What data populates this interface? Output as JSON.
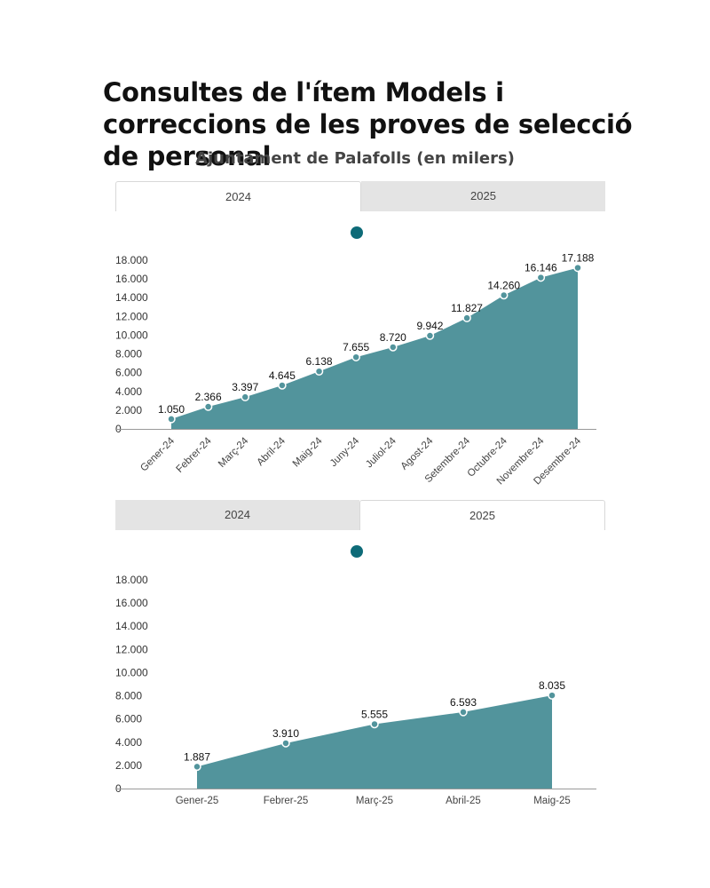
{
  "title": "Consultes de l'ítem Models i correccions de les proves de selecció de personal",
  "subtitle": "Ajuntament de Palafolls (en milers)",
  "colors": {
    "area": "#52949c",
    "point": "#52949c",
    "legend": "#0e6b78",
    "axis": "#999999"
  },
  "tabs_top": [
    {
      "label": "2024",
      "active": true
    },
    {
      "label": "2025",
      "active": false
    }
  ],
  "tabs_bottom": [
    {
      "label": "2024",
      "active": false
    },
    {
      "label": "2025",
      "active": true
    }
  ],
  "chart_data": [
    {
      "type": "area",
      "title": "",
      "xlabel": "",
      "ylabel": "",
      "ylim": [
        0,
        18000
      ],
      "yticks": [
        "0",
        "2.000",
        "4.000",
        "6.000",
        "8.000",
        "10.000",
        "12.000",
        "14.000",
        "16.000",
        "18.000"
      ],
      "categories": [
        "Gener-24",
        "Febrer-24",
        "Març-24",
        "Abril-24",
        "Maig-24",
        "Juny-24",
        "Juliol-24",
        "Agost-24",
        "Setembre-24",
        "Octubre-24",
        "Novembre-24",
        "Desembre-24"
      ],
      "values": [
        1050,
        2366,
        3397,
        4645,
        6138,
        7655,
        8720,
        9942,
        11827,
        14260,
        16146,
        17188
      ],
      "labels": [
        "1.050",
        "2.366",
        "3.397",
        "4.645",
        "6.138",
        "7.655",
        "8.720",
        "9.942",
        "11.827",
        "14.260",
        "16.146",
        "17.188"
      ],
      "grid": false
    },
    {
      "type": "area",
      "title": "",
      "xlabel": "",
      "ylabel": "",
      "ylim": [
        0,
        18000
      ],
      "yticks": [
        "0",
        "2.000",
        "4.000",
        "6.000",
        "8.000",
        "10.000",
        "12.000",
        "14.000",
        "16.000",
        "18.000"
      ],
      "categories": [
        "Gener-25",
        "Febrer-25",
        "Març-25",
        "Abril-25",
        "Maig-25"
      ],
      "values": [
        1887,
        3910,
        5555,
        6593,
        8035
      ],
      "labels": [
        "1.887",
        "3.910",
        "5.555",
        "6.593",
        "8.035"
      ],
      "grid": false
    }
  ]
}
